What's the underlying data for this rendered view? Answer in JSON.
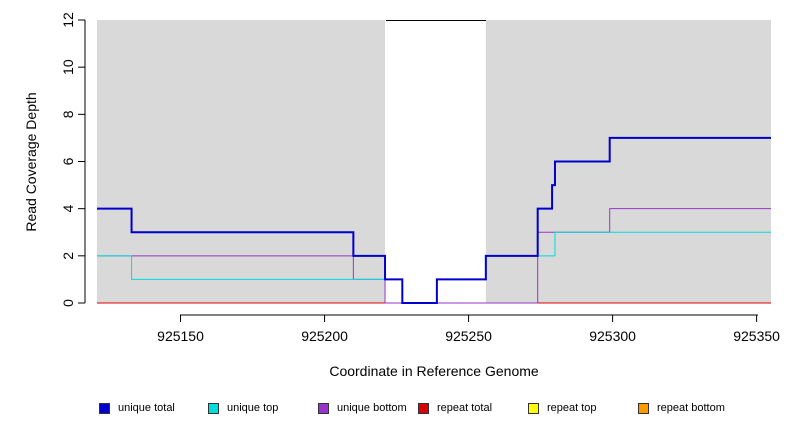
{
  "chart_data": {
    "type": "line",
    "xlabel": "Coordinate in Reference Genome",
    "ylabel": "Read Coverage Depth",
    "xlim": [
      925121,
      925355
    ],
    "ylim": [
      0,
      12
    ],
    "xticks": [
      "925150",
      "925200",
      "925250",
      "925300",
      "925350"
    ],
    "yticks": [
      "0",
      "2",
      "4",
      "6",
      "8",
      "10",
      "12"
    ],
    "shaded_regions": [
      [
        925121,
        925221
      ],
      [
        925256,
        925355
      ]
    ],
    "grid": false,
    "legend_position": "bottom",
    "series": [
      {
        "name": "unique total",
        "color": "#0000cc",
        "x": [
          925121,
          925133,
          925210,
          925221,
          925227,
          925239,
          925256,
          925274,
          925279,
          925280,
          925299,
          925355
        ],
        "y": [
          4,
          3,
          2,
          1,
          0,
          1,
          2,
          4,
          5,
          6,
          7,
          7
        ]
      },
      {
        "name": "unique top",
        "color": "#00dddd",
        "x": [
          925121,
          925133,
          925210,
          925221,
          925227,
          925239,
          925256,
          925274,
          925280,
          925355
        ],
        "y": [
          2,
          1,
          1,
          1,
          0,
          1,
          2,
          2,
          3,
          3
        ]
      },
      {
        "name": "unique bottom",
        "color": "#9933cc",
        "x": [
          925121,
          925210,
          925221,
          925274,
          925299,
          925355
        ],
        "y": [
          2,
          1,
          0,
          3,
          4,
          4
        ]
      },
      {
        "name": "repeat total",
        "color": "#dd0000",
        "x": [
          925121,
          925355
        ],
        "y": [
          0,
          0
        ]
      },
      {
        "name": "repeat top",
        "color": "#ffff00",
        "x": [
          925121,
          925355
        ],
        "y": [
          0,
          0
        ]
      },
      {
        "name": "repeat bottom",
        "color": "#ff9900",
        "x": [
          925121,
          925355
        ],
        "y": [
          0,
          0
        ]
      }
    ]
  }
}
